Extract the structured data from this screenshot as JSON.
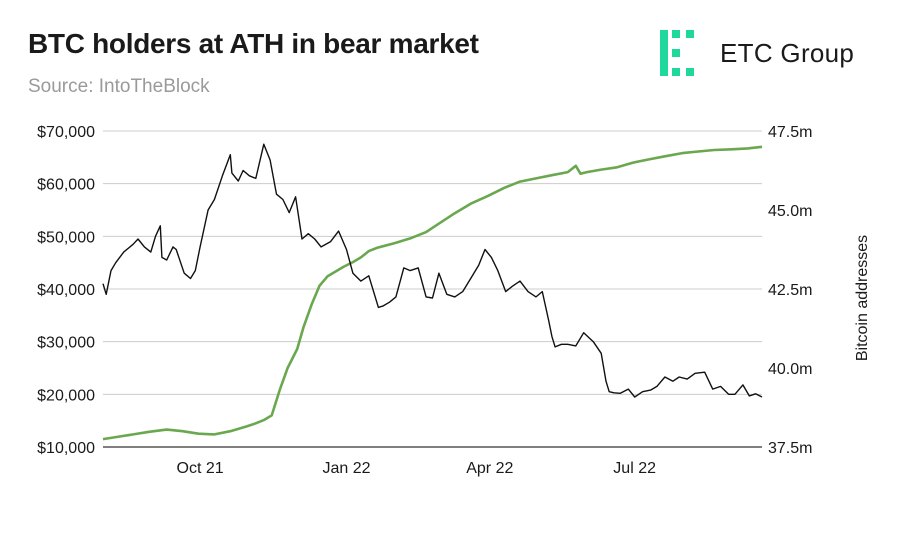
{
  "header": {
    "title": "BTC holders at ATH in bear market",
    "subtitle": "Source: IntoTheBlock"
  },
  "brand": {
    "name": "ETC Group",
    "logo_icon": "etc-group-logo-icon",
    "logo_color": "#1ed99b"
  },
  "chart_data": {
    "type": "line",
    "grid": "horizontal",
    "x_labels": [
      "Oct 21",
      "Jan 22",
      "Apr 22",
      "Jul 22"
    ],
    "x_label_dates": [
      "2021-10-01",
      "2022-01-01",
      "2022-04-01",
      "2022-07-01"
    ],
    "x_range": [
      "2021-08-01",
      "2022-09-19"
    ],
    "y_left": {
      "range": [
        10000,
        70000
      ],
      "ticks": [
        10000,
        20000,
        30000,
        40000,
        50000,
        60000,
        70000
      ],
      "tick_labels": [
        "$10,000",
        "$20,000",
        "$30,000",
        "$40,000",
        "$50,000",
        "$60,000",
        "$70,000"
      ]
    },
    "y_right": {
      "label": "Bitcoin addresses",
      "range": [
        37.5,
        47.5
      ],
      "ticks": [
        37.5,
        40.0,
        42.5,
        45.0,
        47.5
      ],
      "tick_labels": [
        "37.5m",
        "40.0m",
        "42.5m",
        "45.0m",
        "47.5m"
      ]
    },
    "series": [
      {
        "axis": "left",
        "color": "#111111",
        "x": [
          "2021-08-01",
          "2021-08-03",
          "2021-08-06",
          "2021-08-09",
          "2021-08-14",
          "2021-08-20",
          "2021-08-23",
          "2021-08-27",
          "2021-08-31",
          "2021-09-03",
          "2021-09-06",
          "2021-09-07",
          "2021-09-10",
          "2021-09-14",
          "2021-09-16",
          "2021-09-21",
          "2021-09-25",
          "2021-09-28",
          "2021-10-01",
          "2021-10-06",
          "2021-10-10",
          "2021-10-15",
          "2021-10-20",
          "2021-10-21",
          "2021-10-25",
          "2021-10-28",
          "2021-11-01",
          "2021-11-05",
          "2021-11-10",
          "2021-11-14",
          "2021-11-18",
          "2021-11-22",
          "2021-11-26",
          "2021-11-30",
          "2021-12-04",
          "2021-12-08",
          "2021-12-12",
          "2021-12-16",
          "2021-12-22",
          "2021-12-27",
          "2022-01-01",
          "2022-01-05",
          "2022-01-10",
          "2022-01-15",
          "2022-01-21",
          "2022-01-24",
          "2022-01-28",
          "2022-02-01",
          "2022-02-06",
          "2022-02-10",
          "2022-02-15",
          "2022-02-20",
          "2022-02-24",
          "2022-02-28",
          "2022-03-05",
          "2022-03-10",
          "2022-03-15",
          "2022-03-20",
          "2022-03-25",
          "2022-03-29",
          "2022-04-02",
          "2022-04-06",
          "2022-04-11",
          "2022-04-15",
          "2022-04-20",
          "2022-04-25",
          "2022-04-30",
          "2022-05-04",
          "2022-05-08",
          "2022-05-10",
          "2022-05-12",
          "2022-05-16",
          "2022-05-20",
          "2022-05-25",
          "2022-05-30",
          "2022-06-05",
          "2022-06-10",
          "2022-06-13",
          "2022-06-15",
          "2022-06-18",
          "2022-06-22",
          "2022-06-27",
          "2022-07-01",
          "2022-07-06",
          "2022-07-11",
          "2022-07-15",
          "2022-07-20",
          "2022-07-25",
          "2022-07-29",
          "2022-08-03",
          "2022-08-08",
          "2022-08-14",
          "2022-08-19",
          "2022-08-24",
          "2022-08-29",
          "2022-09-02",
          "2022-09-07",
          "2022-09-11",
          "2022-09-15",
          "2022-09-19"
        ],
        "values": [
          41000,
          39000,
          43500,
          45000,
          47000,
          48500,
          49500,
          48000,
          47000,
          50000,
          52000,
          46000,
          45500,
          48000,
          47500,
          43000,
          42000,
          43500,
          48000,
          55000,
          57000,
          61500,
          65500,
          62000,
          60500,
          62500,
          61500,
          61000,
          67500,
          64500,
          58000,
          57000,
          54500,
          57500,
          49500,
          50500,
          49500,
          48000,
          49000,
          51000,
          47500,
          43000,
          41500,
          42500,
          36500,
          36800,
          37500,
          38500,
          44000,
          43500,
          44000,
          38500,
          38300,
          43000,
          39000,
          38500,
          39500,
          42000,
          44500,
          47500,
          46000,
          43500,
          39500,
          40500,
          41500,
          39500,
          38500,
          39500,
          34000,
          31000,
          29000,
          29500,
          29500,
          29200,
          31700,
          30000,
          27800,
          22500,
          20500,
          20300,
          20200,
          21000,
          19500,
          20500,
          20800,
          21500,
          23300,
          22500,
          23300,
          22900,
          24000,
          24200,
          21000,
          21500,
          20000,
          20000,
          21800,
          19700,
          20100,
          19500
        ]
      },
      {
        "axis": "right",
        "color": "#6aa84f",
        "x": [
          "2021-08-01",
          "2021-08-10",
          "2021-08-20",
          "2021-08-30",
          "2021-09-10",
          "2021-09-20",
          "2021-09-30",
          "2021-10-10",
          "2021-10-20",
          "2021-10-30",
          "2021-11-05",
          "2021-11-10",
          "2021-11-15",
          "2021-11-20",
          "2021-11-25",
          "2021-12-01",
          "2021-12-05",
          "2021-12-10",
          "2021-12-15",
          "2021-12-20",
          "2021-12-25",
          "2021-12-30",
          "2022-01-05",
          "2022-01-10",
          "2022-01-15",
          "2022-01-20",
          "2022-01-31",
          "2022-02-10",
          "2022-02-20",
          "2022-03-01",
          "2022-03-10",
          "2022-03-20",
          "2022-03-31",
          "2022-04-10",
          "2022-04-20",
          "2022-04-30",
          "2022-05-10",
          "2022-05-20",
          "2022-05-25",
          "2022-05-28",
          "2022-06-01",
          "2022-06-10",
          "2022-06-20",
          "2022-06-30",
          "2022-07-10",
          "2022-07-20",
          "2022-07-31",
          "2022-08-10",
          "2022-08-20",
          "2022-08-31",
          "2022-09-10",
          "2022-09-19"
        ],
        "values": [
          37.75,
          37.82,
          37.9,
          37.98,
          38.05,
          38.0,
          37.92,
          37.9,
          38.0,
          38.15,
          38.25,
          38.35,
          38.5,
          39.3,
          40.0,
          40.6,
          41.3,
          42.0,
          42.6,
          42.9,
          43.05,
          43.2,
          43.35,
          43.5,
          43.7,
          43.8,
          43.95,
          44.1,
          44.3,
          44.6,
          44.9,
          45.2,
          45.45,
          45.7,
          45.9,
          46.0,
          46.1,
          46.2,
          46.4,
          46.15,
          46.2,
          46.28,
          46.35,
          46.5,
          46.6,
          46.7,
          46.8,
          46.85,
          46.9,
          46.92,
          46.95,
          47.0
        ]
      }
    ]
  }
}
